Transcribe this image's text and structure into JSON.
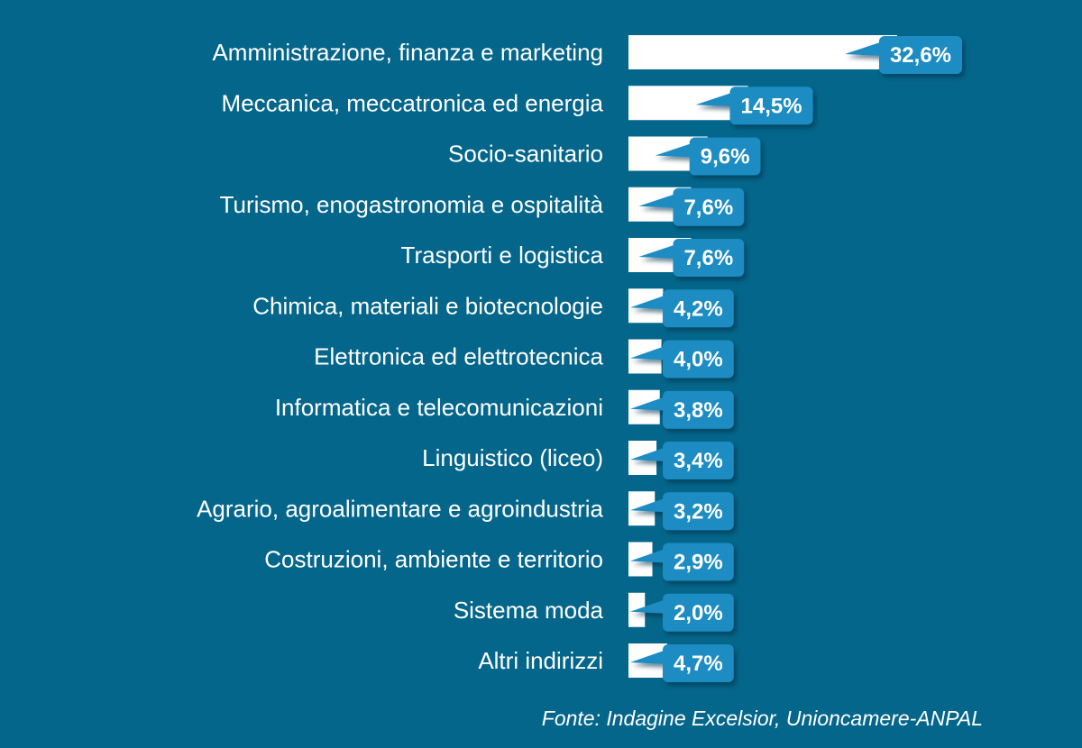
{
  "chart_data": {
    "type": "bar",
    "orientation": "horizontal",
    "categories": [
      "Amministrazione, finanza e marketing",
      "Meccanica, meccatronica ed energia",
      "Socio-sanitario",
      "Turismo, enogastronomia e ospitalità",
      "Trasporti e logistica",
      "Chimica, materiali e biotecnologie",
      "Elettronica ed elettrotecnica",
      "Informatica e telecomunicazioni",
      "Linguistico (liceo)",
      "Agrario, agroalimentare e agroindustria",
      "Costruzioni, ambiente e territorio",
      "Sistema moda",
      "Altri indirizzi"
    ],
    "values": [
      32.6,
      14.5,
      9.6,
      7.6,
      7.6,
      4.2,
      4.0,
      3.8,
      3.4,
      3.2,
      2.9,
      2.0,
      4.7
    ],
    "value_labels": [
      "32,6%",
      "14,5%",
      "9,6%",
      "7,6%",
      "7,6%",
      "4,2%",
      "4,0%",
      "3,8%",
      "3,4%",
      "3,2%",
      "2,9%",
      "2,0%",
      "4,7%"
    ],
    "title": "",
    "xlabel": "",
    "ylabel": "",
    "xlim": [
      0,
      35
    ],
    "grid": false,
    "legend": "none",
    "colors": {
      "background": "#04668a",
      "bar": "#ffffff",
      "label_box": "#1a8cc3",
      "label_text": "#ffffff",
      "category_text": "#ffffff"
    }
  },
  "source_note": "Fonte: Indagine Excelsior, Unioncamere-ANPAL"
}
